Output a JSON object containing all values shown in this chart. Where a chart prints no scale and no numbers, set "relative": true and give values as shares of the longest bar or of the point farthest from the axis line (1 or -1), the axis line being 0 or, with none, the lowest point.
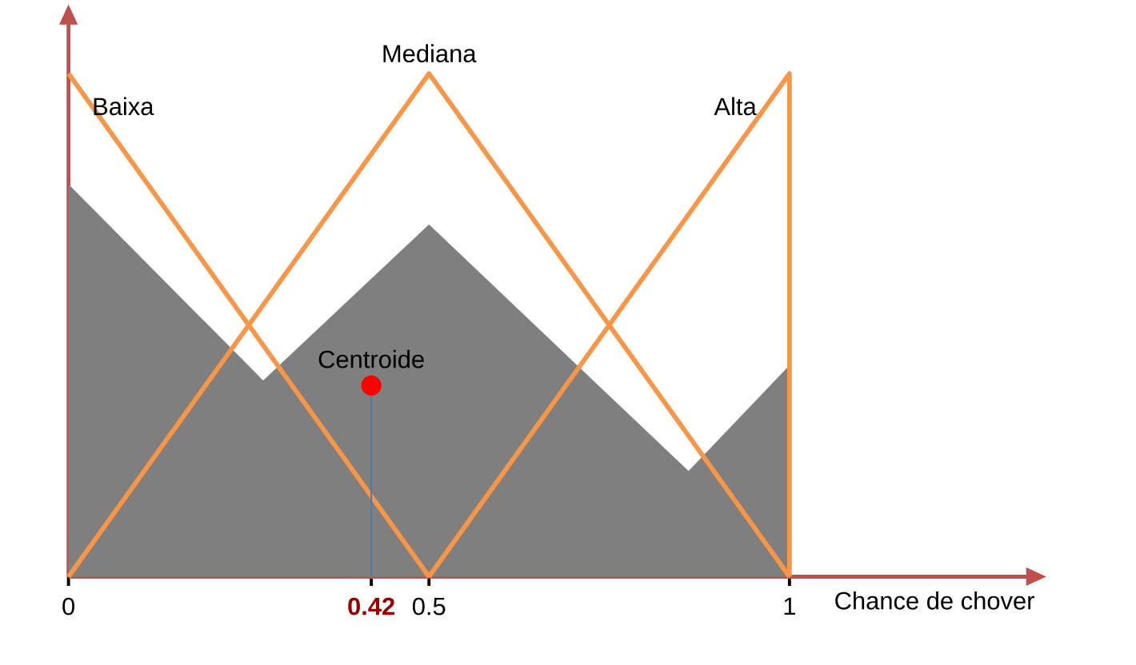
{
  "chart_data": {
    "type": "line",
    "xlabel": "Chance de chover",
    "relative": true,
    "xlim": [
      0,
      1.33
    ],
    "xticks": [
      0,
      0.42,
      0.5,
      1
    ],
    "series": [
      {
        "type": "area",
        "color": "#7f7f7f",
        "x": [
          0,
          0.27,
          0.5,
          0.86,
          1,
          1
        ],
        "values": [
          0.78,
          0.39,
          0.7,
          0.21,
          0.42,
          0
        ]
      },
      {
        "name": "Baixa",
        "color": "#f79646",
        "x": [
          0,
          0.5
        ],
        "values": [
          1,
          0
        ]
      },
      {
        "name": "Mediana",
        "color": "#f79646",
        "x": [
          0,
          0.5,
          1
        ],
        "values": [
          0,
          1,
          0
        ]
      },
      {
        "name": "Alta",
        "color": "#f79646",
        "x": [
          0.5,
          1,
          1
        ],
        "values": [
          0,
          1,
          0
        ]
      },
      {
        "name": "Centroide",
        "type": "lollipop",
        "color": "#ff0000",
        "x": [
          0.42
        ],
        "values": [
          0.38
        ]
      }
    ]
  }
}
